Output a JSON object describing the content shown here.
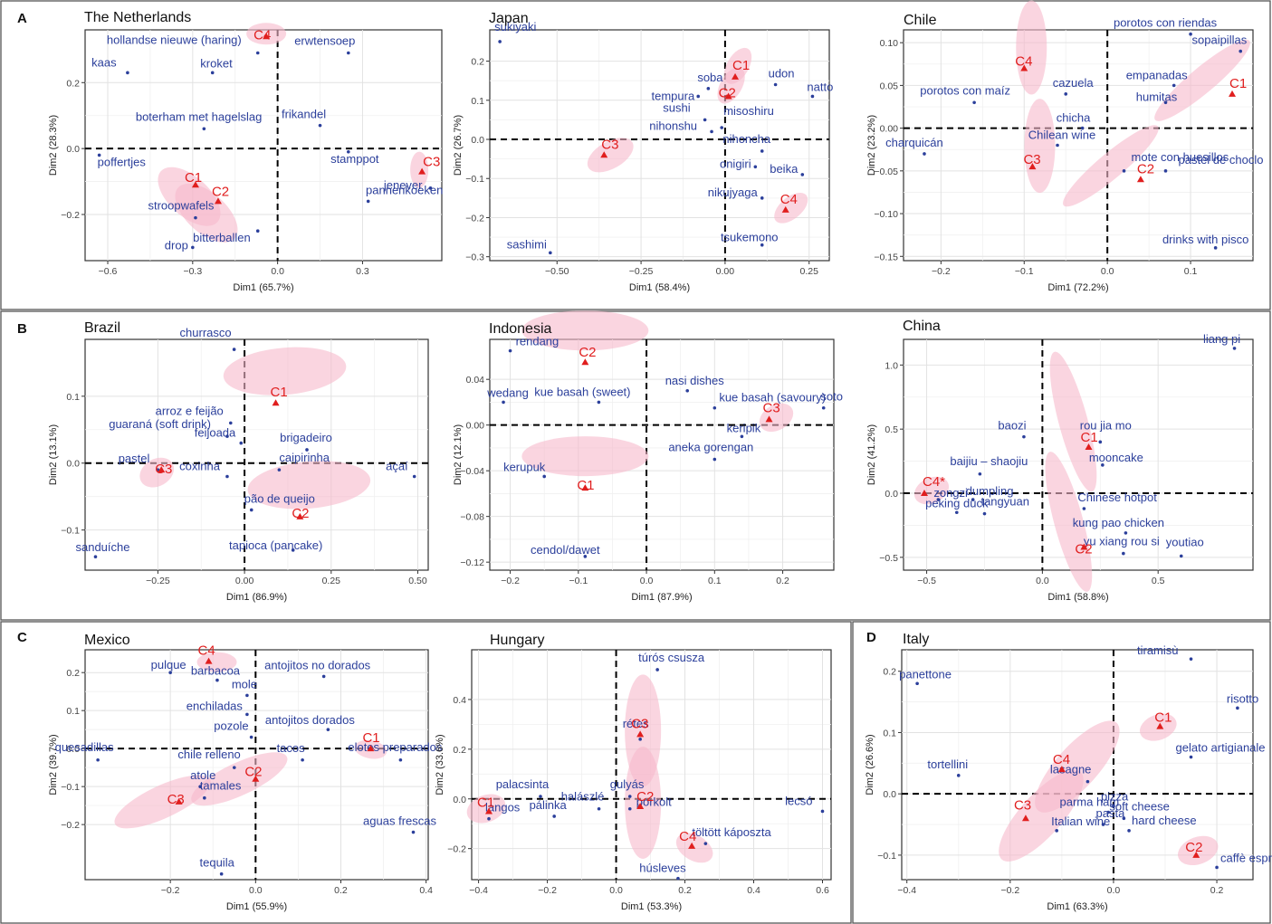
{
  "sections": [
    {
      "letter": "A"
    },
    {
      "letter": "B"
    },
    {
      "letter": "C"
    },
    {
      "letter": "D"
    }
  ],
  "chart_data": [
    {
      "type": "scatter",
      "title": "The Netherlands",
      "xlabel": "Dim1 (65.7%)",
      "ylabel": "Dim2 (28.3%)",
      "xlim": [
        -0.68,
        0.58
      ],
      "ylim": [
        -0.34,
        0.36
      ],
      "xticks": [
        -0.6,
        -0.3,
        0.0,
        0.3
      ],
      "xtick_labels": [
        "−0.6",
        "−0.3",
        "0.0",
        "0.3"
      ],
      "yticks": [
        -0.2,
        0.0,
        0.2
      ],
      "ytick_labels": [
        "−0.2",
        "0.0",
        "0.2"
      ],
      "points": [
        {
          "label": "hollandse nieuwe (haring)",
          "x": -0.07,
          "y": 0.29
        },
        {
          "label": "erwtensoep",
          "x": 0.25,
          "y": 0.29
        },
        {
          "label": "kaas",
          "x": -0.53,
          "y": 0.23
        },
        {
          "label": "kroket",
          "x": -0.23,
          "y": 0.23
        },
        {
          "label": "boterham met hagelslag",
          "x": -0.26,
          "y": 0.06
        },
        {
          "label": "frikandel",
          "x": 0.15,
          "y": 0.07
        },
        {
          "label": "poffertjes",
          "x": -0.63,
          "y": -0.02
        },
        {
          "label": "stamppot",
          "x": 0.25,
          "y": -0.01
        },
        {
          "label": "jenever",
          "x": 0.54,
          "y": -0.12
        },
        {
          "label": "pannenkoeken",
          "x": 0.32,
          "y": -0.16
        },
        {
          "label": "stroopwafels",
          "x": -0.29,
          "y": -0.21
        },
        {
          "label": "bitterballen",
          "x": -0.07,
          "y": -0.25
        },
        {
          "label": "drop",
          "x": -0.3,
          "y": -0.3
        }
      ],
      "clusters": [
        {
          "label": "C1",
          "x": -0.29,
          "y": -0.11
        },
        {
          "label": "C2",
          "x": -0.21,
          "y": -0.16
        },
        {
          "label": "C3",
          "x": 0.51,
          "y": -0.07
        },
        {
          "label": "C4",
          "x": -0.04,
          "y": 0.34
        }
      ]
    },
    {
      "type": "scatter",
      "title": "Japan",
      "xlabel": "Dim1 (58.4%)",
      "ylabel": "Dim2 (26.7%)",
      "xlim": [
        -0.7,
        0.31
      ],
      "ylim": [
        -0.31,
        0.28
      ],
      "xticks": [
        -0.5,
        -0.25,
        0.0,
        0.25
      ],
      "xtick_labels": [
        "−0.50",
        "−0.25",
        "0.00",
        "0.25"
      ],
      "yticks": [
        -0.3,
        -0.2,
        -0.1,
        0.0,
        0.1,
        0.2
      ],
      "ytick_labels": [
        "−0.3",
        "−0.2",
        "−0.1",
        "0.0",
        "0.1",
        "0.2"
      ],
      "points": [
        {
          "label": "sukiyaki",
          "x": -0.67,
          "y": 0.25
        },
        {
          "label": "soba",
          "x": -0.05,
          "y": 0.13
        },
        {
          "label": "udon",
          "x": 0.15,
          "y": 0.14
        },
        {
          "label": "tempura",
          "x": -0.08,
          "y": 0.11
        },
        {
          "label": "natto",
          "x": 0.26,
          "y": 0.11
        },
        {
          "label": "sushi",
          "x": -0.06,
          "y": 0.05
        },
        {
          "label": "nihonshu",
          "x": -0.04,
          "y": 0.02
        },
        {
          "label": "misoshiru",
          "x": -0.01,
          "y": 0.03
        },
        {
          "label": "nihoncha",
          "x": 0.11,
          "y": -0.03
        },
        {
          "label": "onigiri",
          "x": 0.09,
          "y": -0.07
        },
        {
          "label": "beika",
          "x": 0.23,
          "y": -0.09
        },
        {
          "label": "nikujyaga",
          "x": 0.11,
          "y": -0.15
        },
        {
          "label": "tsukemono",
          "x": 0.11,
          "y": -0.27
        },
        {
          "label": "sashimi",
          "x": -0.52,
          "y": -0.29
        }
      ],
      "clusters": [
        {
          "label": "C1",
          "x": 0.03,
          "y": 0.16
        },
        {
          "label": "C2",
          "x": 0.01,
          "y": 0.11
        },
        {
          "label": "C3",
          "x": -0.36,
          "y": -0.04
        },
        {
          "label": "C4",
          "x": 0.18,
          "y": -0.18
        }
      ]
    },
    {
      "type": "scatter",
      "title": "Chile",
      "xlabel": "Dim1 (72.2%)",
      "ylabel": "Dim2 (23.2%)",
      "xlim": [
        -0.245,
        0.175
      ],
      "ylim": [
        -0.155,
        0.115
      ],
      "xticks": [
        -0.2,
        -0.1,
        0.0,
        0.1
      ],
      "xtick_labels": [
        "−0.2",
        "−0.1",
        "0.0",
        "0.1"
      ],
      "yticks": [
        -0.15,
        -0.1,
        -0.05,
        0.0,
        0.05,
        0.1
      ],
      "ytick_labels": [
        "−0.15",
        "−0.10",
        "−0.05",
        "0.00",
        "0.05",
        "0.10"
      ],
      "points": [
        {
          "label": "porotos con riendas",
          "x": 0.1,
          "y": 0.11
        },
        {
          "label": "sopaipillas",
          "x": 0.16,
          "y": 0.09
        },
        {
          "label": "porotos con maíz",
          "x": -0.16,
          "y": 0.03
        },
        {
          "label": "cazuela",
          "x": -0.05,
          "y": 0.04
        },
        {
          "label": "empanadas",
          "x": 0.08,
          "y": 0.05
        },
        {
          "label": "humitas",
          "x": 0.07,
          "y": 0.03
        },
        {
          "label": "chicha",
          "x": -0.03,
          "y": 0.0
        },
        {
          "label": "charquicán",
          "x": -0.22,
          "y": -0.03
        },
        {
          "label": "Chilean wine",
          "x": -0.06,
          "y": -0.02
        },
        {
          "label": "mote con huesillos",
          "x": 0.02,
          "y": -0.05
        },
        {
          "label": "pastel de choclo",
          "x": 0.07,
          "y": -0.05
        },
        {
          "label": "drinks with pisco",
          "x": 0.13,
          "y": -0.14
        }
      ],
      "clusters": [
        {
          "label": "C1",
          "x": 0.15,
          "y": 0.04
        },
        {
          "label": "C2",
          "x": 0.04,
          "y": -0.06
        },
        {
          "label": "C3",
          "x": -0.09,
          "y": -0.045
        },
        {
          "label": "C4",
          "x": -0.1,
          "y": 0.07
        }
      ]
    },
    {
      "type": "scatter",
      "title": "Brazil",
      "xlabel": "Dim1 (86.9%)",
      "ylabel": "Dim2 (13.1%)",
      "xlim": [
        -0.46,
        0.53
      ],
      "ylim": [
        -0.16,
        0.185
      ],
      "xticks": [
        -0.25,
        0.0,
        0.25,
        0.5
      ],
      "xtick_labels": [
        "−0.25",
        "0.00",
        "0.25",
        "0.50"
      ],
      "yticks": [
        -0.1,
        0.0,
        0.1
      ],
      "ytick_labels": [
        "−0.1",
        "0.0",
        "0.1"
      ],
      "points": [
        {
          "label": "churrasco",
          "x": -0.03,
          "y": 0.17
        },
        {
          "label": "arroz e feijão",
          "x": -0.04,
          "y": 0.06
        },
        {
          "label": "guaraná (soft drink)",
          "x": -0.05,
          "y": 0.04
        },
        {
          "label": "feijoada",
          "x": -0.01,
          "y": 0.03
        },
        {
          "label": "brigadeiro",
          "x": 0.18,
          "y": 0.02
        },
        {
          "label": "pastel",
          "x": -0.25,
          "y": -0.01
        },
        {
          "label": "coxinha",
          "x": -0.05,
          "y": -0.02
        },
        {
          "label": "caipirinha",
          "x": 0.1,
          "y": -0.01
        },
        {
          "label": "açaí",
          "x": 0.49,
          "y": -0.02
        },
        {
          "label": "pão de queijo",
          "x": 0.02,
          "y": -0.07
        },
        {
          "label": "tapioca (pancake)",
          "x": 0.14,
          "y": -0.13
        },
        {
          "label": "sanduíche",
          "x": -0.43,
          "y": -0.14
        }
      ],
      "clusters": [
        {
          "label": "C1",
          "x": 0.09,
          "y": 0.09
        },
        {
          "label": "C2",
          "x": 0.16,
          "y": -0.08
        },
        {
          "label": "C3",
          "x": -0.24,
          "y": -0.01
        }
      ]
    },
    {
      "type": "scatter",
      "title": "Indonesia",
      "xlabel": "Dim1 (87.9%)",
      "ylabel": "Dim2 (12.1%)",
      "xlim": [
        -0.23,
        0.275
      ],
      "ylim": [
        -0.127,
        0.075
      ],
      "xticks": [
        -0.2,
        -0.1,
        0.0,
        0.1,
        0.2
      ],
      "xtick_labels": [
        "−0.2",
        "−0.1",
        "0.0",
        "0.1",
        "0.2"
      ],
      "yticks": [
        -0.12,
        -0.08,
        -0.04,
        0.0,
        0.04
      ],
      "ytick_labels": [
        "−0.12",
        "−0.08",
        "−0.04",
        "0.00",
        "0.04"
      ],
      "points": [
        {
          "label": "rendang",
          "x": -0.2,
          "y": 0.065
        },
        {
          "label": "wedang",
          "x": -0.21,
          "y": 0.02
        },
        {
          "label": "kue basah (sweet)",
          "x": -0.07,
          "y": 0.02
        },
        {
          "label": "nasi dishes",
          "x": 0.06,
          "y": 0.03
        },
        {
          "label": "kue basah (savoury)",
          "x": 0.1,
          "y": 0.015
        },
        {
          "label": "soto",
          "x": 0.26,
          "y": 0.015
        },
        {
          "label": "keripik",
          "x": 0.14,
          "y": -0.01
        },
        {
          "label": "aneka gorengan",
          "x": 0.1,
          "y": -0.03
        },
        {
          "label": "kerupuk",
          "x": -0.15,
          "y": -0.045
        },
        {
          "label": "cendol/dawet",
          "x": -0.09,
          "y": -0.115
        }
      ],
      "clusters": [
        {
          "label": "C1",
          "x": -0.09,
          "y": -0.055
        },
        {
          "label": "C2",
          "x": -0.09,
          "y": 0.055
        },
        {
          "label": "C3",
          "x": 0.18,
          "y": 0.005
        }
      ]
    },
    {
      "type": "scatter",
      "title": "China",
      "xlabel": "Dim1 (58.8%)",
      "ylabel": "Dim2 (41.2%)",
      "xlim": [
        -0.6,
        0.91
      ],
      "ylim": [
        -0.6,
        1.2
      ],
      "xticks": [
        -0.5,
        0.0,
        0.5
      ],
      "xtick_labels": [
        "−0.5",
        "0.0",
        "0.5"
      ],
      "yticks": [
        -0.5,
        0.0,
        0.5,
        1.0
      ],
      "ytick_labels": [
        "−0.5",
        "0.0",
        "0.5",
        "1.0"
      ],
      "points": [
        {
          "label": "liang pi",
          "x": 0.83,
          "y": 1.13
        },
        {
          "label": "baozi",
          "x": -0.08,
          "y": 0.44
        },
        {
          "label": "rou jia mo",
          "x": 0.25,
          "y": 0.4
        },
        {
          "label": "baijiu – shaojiu",
          "x": -0.27,
          "y": 0.15
        },
        {
          "label": "mooncake",
          "x": 0.26,
          "y": 0.22
        },
        {
          "label": "dumpling",
          "x": -0.3,
          "y": -0.05
        },
        {
          "label": "zongzi",
          "x": -0.45,
          "y": -0.05
        },
        {
          "label": "tangyuan",
          "x": -0.25,
          "y": -0.16
        },
        {
          "label": "peking duck",
          "x": -0.37,
          "y": -0.15
        },
        {
          "label": "Chinese hotpot",
          "x": 0.18,
          "y": -0.12
        },
        {
          "label": "kung pao chicken",
          "x": 0.36,
          "y": -0.31
        },
        {
          "label": "youtiao",
          "x": 0.6,
          "y": -0.49
        },
        {
          "label": "yu xiang rou si",
          "x": 0.35,
          "y": -0.47
        }
      ],
      "clusters": [
        {
          "label": "C1",
          "x": 0.2,
          "y": 0.36
        },
        {
          "label": "C2",
          "x": 0.18,
          "y": -0.42
        },
        {
          "label": "C4*",
          "x": -0.51,
          "y": 0.0
        }
      ]
    },
    {
      "type": "scatter",
      "title": "Mexico",
      "xlabel": "Dim1 (55.9%)",
      "ylabel": "Dim2 (39.7%)",
      "xlim": [
        -0.4,
        0.405
      ],
      "ylim": [
        -0.345,
        0.26
      ],
      "xticks": [
        -0.2,
        0.0,
        0.2,
        0.4
      ],
      "xtick_labels": [
        "−0.2",
        "0.0",
        "0.2",
        "0.4"
      ],
      "yticks": [
        -0.2,
        -0.1,
        0.0,
        0.1,
        0.2
      ],
      "ytick_labels": [
        "−0.2",
        "−0.1",
        "0.0",
        "0.1",
        "0.2"
      ],
      "points": [
        {
          "label": "pulque",
          "x": -0.2,
          "y": 0.2
        },
        {
          "label": "barbacoa",
          "x": -0.09,
          "y": 0.18
        },
        {
          "label": "antojitos no dorados",
          "x": 0.16,
          "y": 0.19
        },
        {
          "label": "mole",
          "x": -0.02,
          "y": 0.14
        },
        {
          "label": "enchiladas",
          "x": -0.02,
          "y": 0.09
        },
        {
          "label": "antojitos dorados",
          "x": 0.17,
          "y": 0.05
        },
        {
          "label": "pozole",
          "x": -0.01,
          "y": 0.03
        },
        {
          "label": "quesadillas",
          "x": -0.37,
          "y": -0.03
        },
        {
          "label": "chile relleno",
          "x": -0.05,
          "y": -0.05
        },
        {
          "label": "tacos",
          "x": 0.11,
          "y": -0.03
        },
        {
          "label": "elotes preparados",
          "x": 0.34,
          "y": -0.03
        },
        {
          "label": "atole",
          "x": -0.13,
          "y": -0.1
        },
        {
          "label": "tamales",
          "x": -0.12,
          "y": -0.13
        },
        {
          "label": "aguas frescas",
          "x": 0.37,
          "y": -0.22
        },
        {
          "label": "tequila",
          "x": -0.08,
          "y": -0.33
        }
      ],
      "clusters": [
        {
          "label": "C1",
          "x": 0.27,
          "y": 0.0
        },
        {
          "label": "C2",
          "x": 0.0,
          "y": -0.08
        },
        {
          "label": "C3",
          "x": -0.18,
          "y": -0.14
        },
        {
          "label": "C4",
          "x": -0.11,
          "y": 0.23
        }
      ]
    },
    {
      "type": "scatter",
      "title": "Hungary",
      "xlabel": "Dim1 (53.3%)",
      "ylabel": "Dim2 (33.6%)",
      "xlim": [
        -0.42,
        0.625
      ],
      "ylim": [
        -0.325,
        0.6
      ],
      "xticks": [
        -0.4,
        -0.2,
        0.0,
        0.2,
        0.4,
        0.6
      ],
      "xtick_labels": [
        "−0.4",
        "−0.2",
        "0.0",
        "0.2",
        "0.4",
        "0.6"
      ],
      "yticks": [
        -0.2,
        0.0,
        0.2,
        0.4
      ],
      "ytick_labels": [
        "−0.2",
        "0.0",
        "0.2",
        "0.4"
      ],
      "points": [
        {
          "label": "túrós csusza",
          "x": 0.12,
          "y": 0.52
        },
        {
          "label": "rétes",
          "x": 0.07,
          "y": 0.24
        },
        {
          "label": "palacsinta",
          "x": -0.22,
          "y": 0.01
        },
        {
          "label": "gulyás",
          "x": 0.04,
          "y": 0.01
        },
        {
          "label": "pálinka",
          "x": -0.18,
          "y": -0.07
        },
        {
          "label": "halászlé",
          "x": -0.05,
          "y": -0.04
        },
        {
          "label": "porkolt",
          "x": 0.04,
          "y": -0.04
        },
        {
          "label": "langos",
          "x": -0.37,
          "y": -0.08
        },
        {
          "label": "lecsó",
          "x": 0.6,
          "y": -0.05
        },
        {
          "label": "töltött káposzta",
          "x": 0.26,
          "y": -0.18
        },
        {
          "label": "húsleves",
          "x": 0.18,
          "y": -0.32
        }
      ],
      "clusters": [
        {
          "label": "C1",
          "x": -0.37,
          "y": -0.05
        },
        {
          "label": "C2",
          "x": 0.07,
          "y": -0.03
        },
        {
          "label": "C3",
          "x": 0.07,
          "y": 0.26
        },
        {
          "label": "C4",
          "x": 0.22,
          "y": -0.19
        }
      ]
    },
    {
      "type": "scatter",
      "title": "Italy",
      "xlabel": "Dim1 (63.3%)",
      "ylabel": "Dim2 (26.6%)",
      "xlim": [
        -0.41,
        0.27
      ],
      "ylim": [
        -0.14,
        0.235
      ],
      "xticks": [
        -0.4,
        -0.2,
        0.0,
        0.2
      ],
      "xtick_labels": [
        "−0.4",
        "−0.2",
        "0.0",
        "0.2"
      ],
      "yticks": [
        -0.1,
        0.0,
        0.1,
        0.2
      ],
      "ytick_labels": [
        "−0.1",
        "0.0",
        "0.1",
        "0.2"
      ],
      "points": [
        {
          "label": "panettone",
          "x": -0.38,
          "y": 0.18
        },
        {
          "label": "tiramisù",
          "x": 0.15,
          "y": 0.22
        },
        {
          "label": "risotto",
          "x": 0.24,
          "y": 0.14
        },
        {
          "label": "gelato artigianale",
          "x": 0.15,
          "y": 0.06
        },
        {
          "label": "tortellini",
          "x": -0.3,
          "y": 0.03
        },
        {
          "label": "lasagne",
          "x": -0.05,
          "y": 0.02
        },
        {
          "label": "pizza",
          "x": 0.0,
          "y": -0.02
        },
        {
          "label": "parma ham",
          "x": -0.01,
          "y": -0.03
        },
        {
          "label": "pasta",
          "x": -0.02,
          "y": -0.05
        },
        {
          "label": "soft cheese",
          "x": 0.02,
          "y": -0.04
        },
        {
          "label": "hard cheese",
          "x": 0.03,
          "y": -0.06
        },
        {
          "label": "Italian wine",
          "x": -0.11,
          "y": -0.06
        },
        {
          "label": "caffè espresso",
          "x": 0.2,
          "y": -0.12
        }
      ],
      "clusters": [
        {
          "label": "C1",
          "x": 0.09,
          "y": 0.11
        },
        {
          "label": "C2",
          "x": 0.16,
          "y": -0.1
        },
        {
          "label": "C3",
          "x": -0.17,
          "y": -0.04
        },
        {
          "label": "C4",
          "x": -0.1,
          "y": 0.04
        }
      ]
    }
  ]
}
